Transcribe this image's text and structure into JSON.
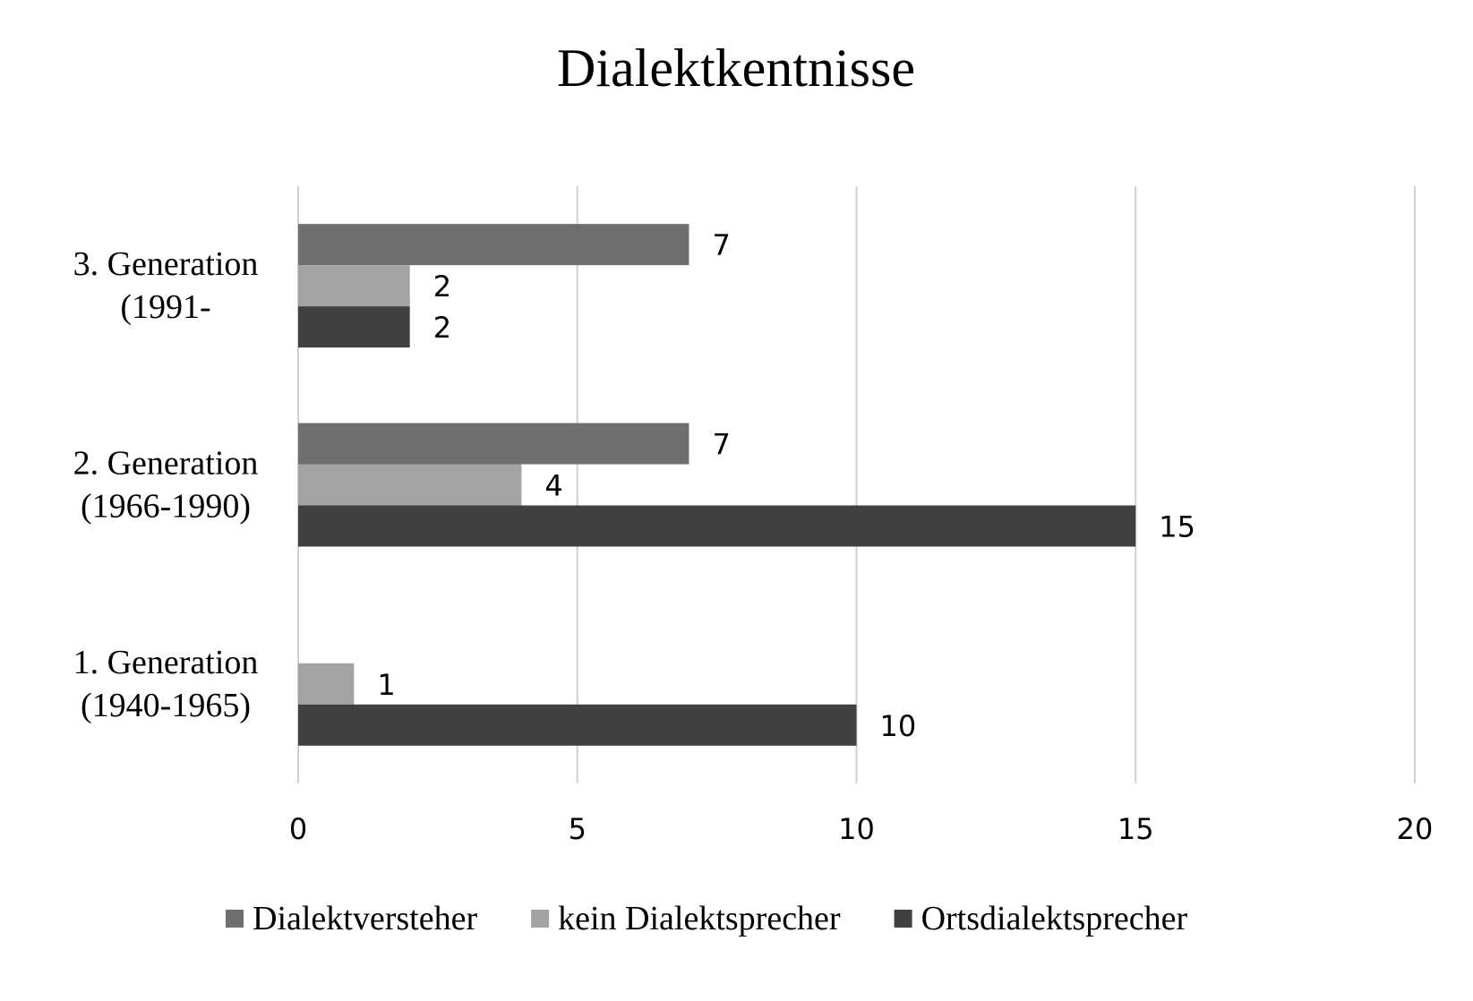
{
  "chart_data": {
    "type": "bar",
    "orientation": "horizontal",
    "title": "Dialektkentnisse",
    "categories": [
      [
        "1. Generation",
        "(1940-1965)"
      ],
      [
        "2. Generation",
        "(1966-1990)"
      ],
      [
        "3. Generation",
        "(1991-"
      ]
    ],
    "series": [
      {
        "name": "Dialektversteher",
        "color": "#6f6f6f",
        "values": [
          null,
          7,
          7
        ]
      },
      {
        "name": "kein Dialektsprecher",
        "color": "#a3a3a3",
        "values": [
          1,
          4,
          2
        ]
      },
      {
        "name": "Ortsdialektsprecher",
        "color": "#404040",
        "values": [
          10,
          15,
          2
        ]
      }
    ],
    "xlim": [
      0,
      20
    ],
    "xticks": [
      0,
      5,
      10,
      15,
      20
    ],
    "grid": true,
    "legend": "bottom"
  }
}
